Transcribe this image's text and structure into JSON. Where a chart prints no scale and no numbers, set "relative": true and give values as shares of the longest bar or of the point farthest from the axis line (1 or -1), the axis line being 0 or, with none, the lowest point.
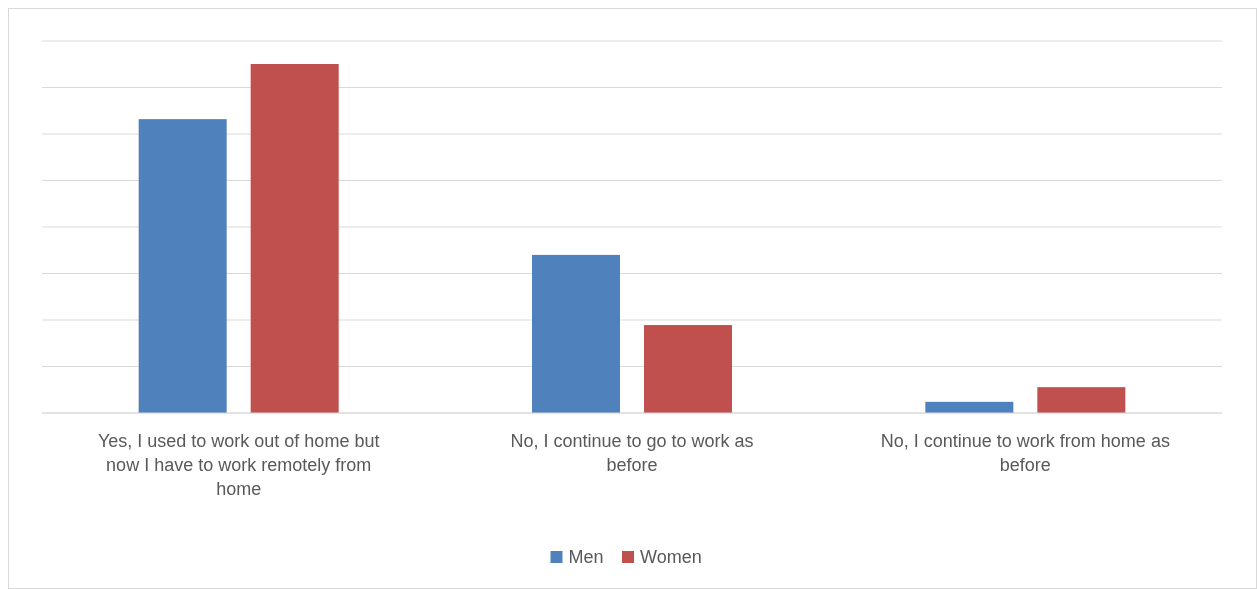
{
  "chart_data": {
    "type": "bar",
    "relative": true,
    "grid": true,
    "legend": "bottom",
    "categories": [
      "Yes, I used to work out of home but now I have to work remotely from home",
      "No, I  continue to go to work as before",
      "No, I continue to work from home as before"
    ],
    "series": [
      {
        "name": "Men",
        "color": "#4f81bd",
        "values": [
          0.842,
          0.453,
          0.032
        ]
      },
      {
        "name": "Women",
        "color": "#c0504d",
        "values": [
          1,
          0.252,
          0.074
        ]
      }
    ]
  }
}
